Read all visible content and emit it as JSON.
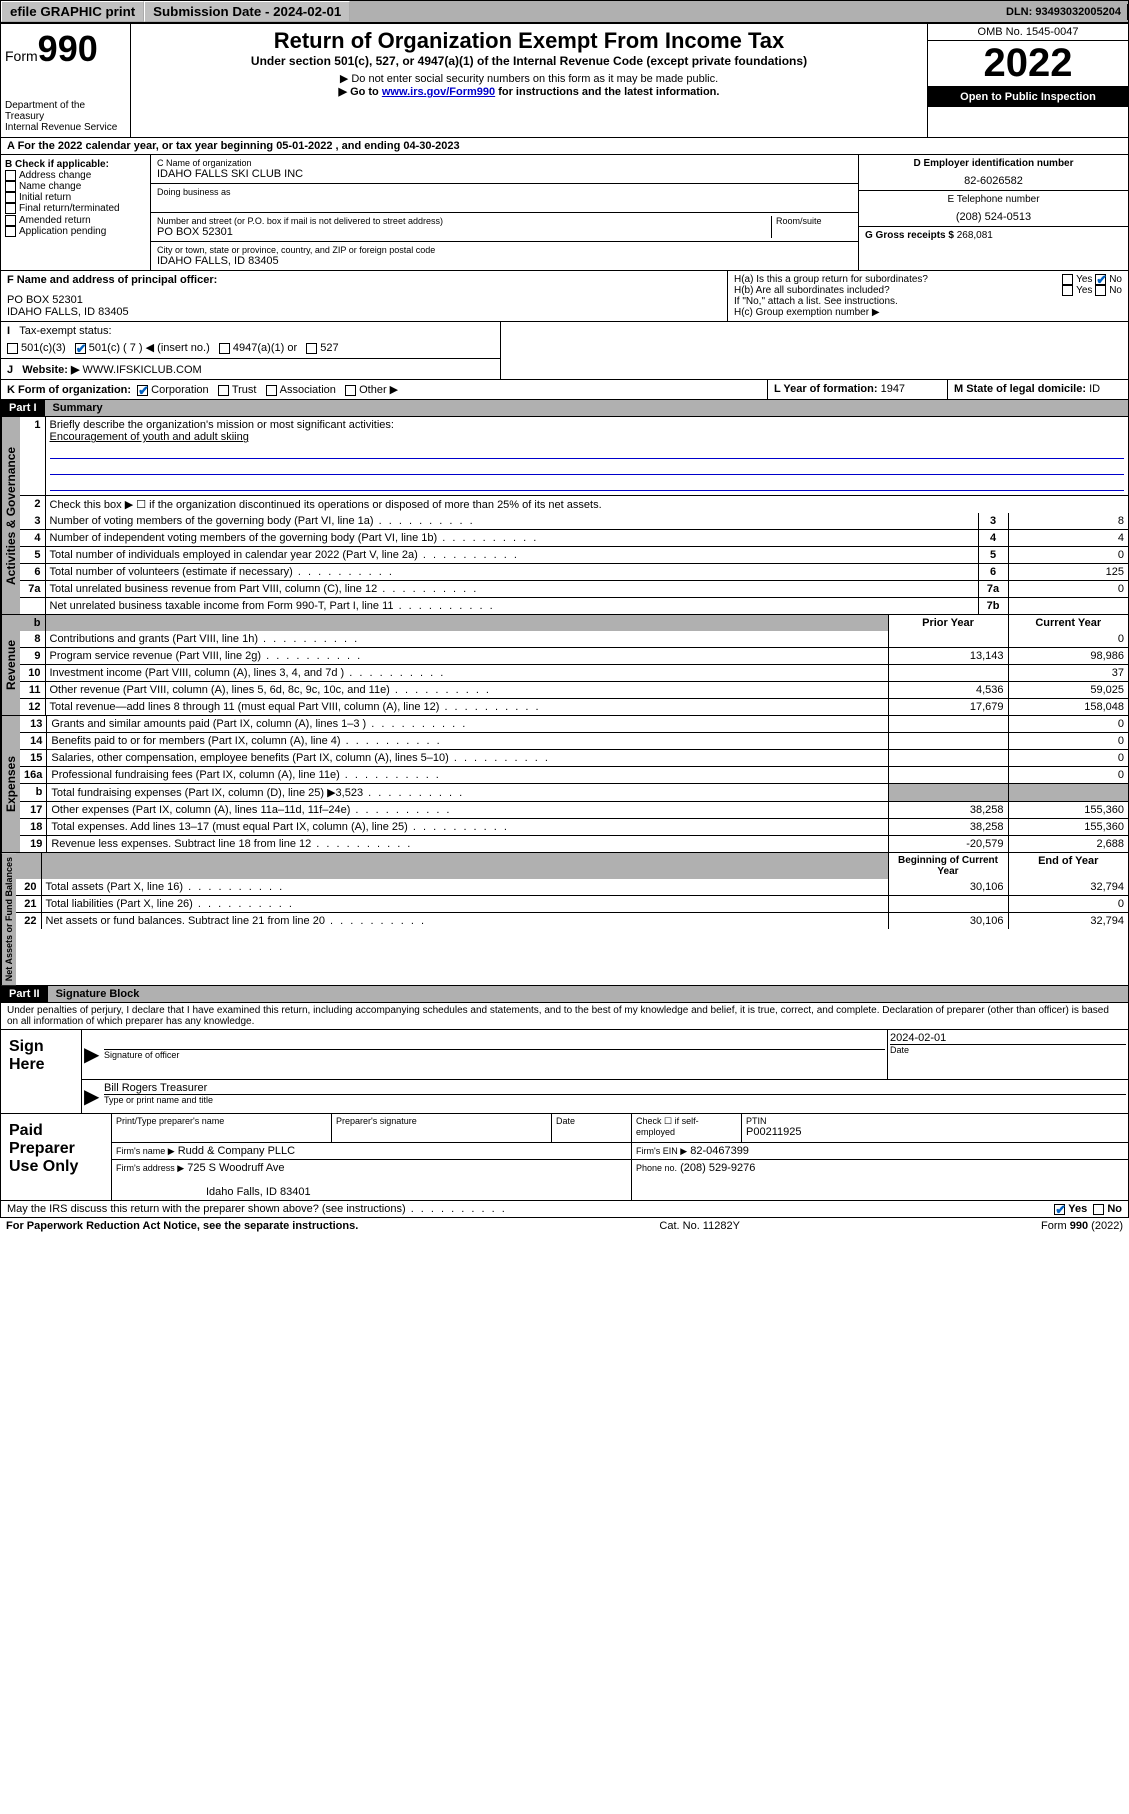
{
  "topbar": {
    "efile": "efile GRAPHIC print",
    "submission_label": "Submission Date - 2024-02-01",
    "dln": "DLN: 93493032005204"
  },
  "header": {
    "form_label": "Form",
    "form_number": "990",
    "title": "Return of Organization Exempt From Income Tax",
    "subtitle": "Under section 501(c), 527, or 4947(a)(1) of the Internal Revenue Code (except private foundations)",
    "note1": "▶ Do not enter social security numbers on this form as it may be made public.",
    "note2_pre": "▶ Go to ",
    "note2_link": "www.irs.gov/Form990",
    "note2_post": " for instructions and the latest information.",
    "dept": "Department of the Treasury",
    "irs": "Internal Revenue Service",
    "omb": "OMB No. 1545-0047",
    "year": "2022",
    "open": "Open to Public Inspection"
  },
  "section_a": {
    "text": "A For the 2022 calendar year, or tax year beginning 05-01-2022   , and ending 04-30-2023"
  },
  "section_b": {
    "label": "B Check if applicable:",
    "items": [
      "Address change",
      "Name change",
      "Initial return",
      "Final return/terminated",
      "Amended return",
      "Application pending"
    ]
  },
  "section_c": {
    "name_label": "C Name of organization",
    "name": "IDAHO FALLS SKI CLUB INC",
    "dba_label": "Doing business as",
    "addr_label": "Number and street (or P.O. box if mail is not delivered to street address)",
    "room_label": "Room/suite",
    "addr": "PO BOX 52301",
    "city_label": "City or town, state or province, country, and ZIP or foreign postal code",
    "city": "IDAHO FALLS, ID  83405"
  },
  "section_d": {
    "label": "D Employer identification number",
    "value": "82-6026582"
  },
  "section_e": {
    "label": "E Telephone number",
    "value": "(208) 524-0513"
  },
  "section_g": {
    "label": "G Gross receipts $",
    "value": "268,081"
  },
  "section_f": {
    "label": "F Name and address of principal officer:",
    "line1": "PO BOX 52301",
    "line2": "IDAHO FALLS, ID  83405"
  },
  "section_h": {
    "ha": "H(a)  Is this a group return for subordinates?",
    "hb": "H(b)  Are all subordinates included?",
    "hb_note": "If \"No,\" attach a list. See instructions.",
    "hc": "H(c)  Group exemption number ▶"
  },
  "section_i": {
    "label": "Tax-exempt status:",
    "opts": [
      "501(c)(3)",
      "501(c) ( 7 ) ◀ (insert no.)",
      "4947(a)(1) or",
      "527"
    ]
  },
  "section_j": {
    "label": "Website: ▶",
    "value": "WWW.IFSKICLUB.COM"
  },
  "section_k": {
    "label": "K Form of organization:",
    "opts": [
      "Corporation",
      "Trust",
      "Association",
      "Other ▶"
    ]
  },
  "section_l": {
    "label": "L Year of formation:",
    "value": "1947"
  },
  "section_m": {
    "label": "M State of legal domicile:",
    "value": "ID"
  },
  "part1": {
    "header": "Part I",
    "title": "Summary",
    "q1": "Briefly describe the organization's mission or most significant activities:",
    "q1_ans": "Encouragement of youth and adult skiing",
    "q2": "Check this box ▶ ☐  if the organization discontinued its operations or disposed of more than 25% of its net assets.",
    "rows_gov": [
      {
        "n": "3",
        "t": "Number of voting members of the governing body (Part VI, line 1a)",
        "k": "3",
        "v": "8"
      },
      {
        "n": "4",
        "t": "Number of independent voting members of the governing body (Part VI, line 1b)",
        "k": "4",
        "v": "4"
      },
      {
        "n": "5",
        "t": "Total number of individuals employed in calendar year 2022 (Part V, line 2a)",
        "k": "5",
        "v": "0"
      },
      {
        "n": "6",
        "t": "Total number of volunteers (estimate if necessary)",
        "k": "6",
        "v": "125"
      },
      {
        "n": "7a",
        "t": "Total unrelated business revenue from Part VIII, column (C), line 12",
        "k": "7a",
        "v": "0"
      },
      {
        "n": "",
        "t": "Net unrelated business taxable income from Form 990-T, Part I, line 11",
        "k": "7b",
        "v": ""
      }
    ],
    "col_headers": {
      "b": "b",
      "prior": "Prior Year",
      "current": "Current Year"
    },
    "rows_rev": [
      {
        "n": "8",
        "t": "Contributions and grants (Part VIII, line 1h)",
        "p": "",
        "c": "0"
      },
      {
        "n": "9",
        "t": "Program service revenue (Part VIII, line 2g)",
        "p": "13,143",
        "c": "98,986"
      },
      {
        "n": "10",
        "t": "Investment income (Part VIII, column (A), lines 3, 4, and 7d )",
        "p": "",
        "c": "37"
      },
      {
        "n": "11",
        "t": "Other revenue (Part VIII, column (A), lines 5, 6d, 8c, 9c, 10c, and 11e)",
        "p": "4,536",
        "c": "59,025"
      },
      {
        "n": "12",
        "t": "Total revenue—add lines 8 through 11 (must equal Part VIII, column (A), line 12)",
        "p": "17,679",
        "c": "158,048"
      }
    ],
    "rows_exp": [
      {
        "n": "13",
        "t": "Grants and similar amounts paid (Part IX, column (A), lines 1–3 )",
        "p": "",
        "c": "0"
      },
      {
        "n": "14",
        "t": "Benefits paid to or for members (Part IX, column (A), line 4)",
        "p": "",
        "c": "0"
      },
      {
        "n": "15",
        "t": "Salaries, other compensation, employee benefits (Part IX, column (A), lines 5–10)",
        "p": "",
        "c": "0"
      },
      {
        "n": "16a",
        "t": "Professional fundraising fees (Part IX, column (A), line 11e)",
        "p": "",
        "c": "0"
      },
      {
        "n": "b",
        "t": "Total fundraising expenses (Part IX, column (D), line 25) ▶3,523",
        "p": "GRAY",
        "c": "GRAY"
      },
      {
        "n": "17",
        "t": "Other expenses (Part IX, column (A), lines 11a–11d, 11f–24e)",
        "p": "38,258",
        "c": "155,360"
      },
      {
        "n": "18",
        "t": "Total expenses. Add lines 13–17 (must equal Part IX, column (A), line 25)",
        "p": "38,258",
        "c": "155,360"
      },
      {
        "n": "19",
        "t": "Revenue less expenses. Subtract line 18 from line 12",
        "p": "-20,579",
        "c": "2,688"
      }
    ],
    "col_headers2": {
      "begin": "Beginning of Current Year",
      "end": "End of Year"
    },
    "rows_net": [
      {
        "n": "20",
        "t": "Total assets (Part X, line 16)",
        "p": "30,106",
        "c": "32,794"
      },
      {
        "n": "21",
        "t": "Total liabilities (Part X, line 26)",
        "p": "",
        "c": "0"
      },
      {
        "n": "22",
        "t": "Net assets or fund balances. Subtract line 21 from line 20",
        "p": "30,106",
        "c": "32,794"
      }
    ],
    "vert_labels": {
      "gov": "Activities & Governance",
      "rev": "Revenue",
      "exp": "Expenses",
      "net": "Net Assets or Fund Balances"
    }
  },
  "part2": {
    "header": "Part II",
    "title": "Signature Block",
    "perjury": "Under penalties of perjury, I declare that I have examined this return, including accompanying schedules and statements, and to the best of my knowledge and belief, it is true, correct, and complete. Declaration of preparer (other than officer) is based on all information of which preparer has any knowledge.",
    "sign_here": "Sign Here",
    "sig_officer": "Signature of officer",
    "date_label": "Date",
    "date_val": "2024-02-01",
    "officer_name": "Bill Rogers  Treasurer",
    "type_name": "Type or print name and title",
    "paid": "Paid Preparer Use Only",
    "prep_name_label": "Print/Type preparer's name",
    "prep_sig_label": "Preparer's signature",
    "check_if": "Check ☐ if self-employed",
    "ptin_label": "PTIN",
    "ptin": "P00211925",
    "firm_name_label": "Firm's name   ▶",
    "firm_name": "Rudd & Company PLLC",
    "firm_ein_label": "Firm's EIN ▶",
    "firm_ein": "82-0467399",
    "firm_addr_label": "Firm's address ▶",
    "firm_addr1": "725 S Woodruff Ave",
    "firm_addr2": "Idaho Falls, ID  83401",
    "phone_label": "Phone no.",
    "phone": "(208) 529-9276",
    "discuss": "May the IRS discuss this return with the preparer shown above? (see instructions)"
  },
  "footer": {
    "left": "For Paperwork Reduction Act Notice, see the separate instructions.",
    "center": "Cat. No. 11282Y",
    "right": "Form 990 (2022)"
  }
}
